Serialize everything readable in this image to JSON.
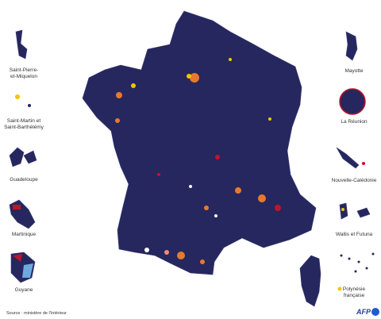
{
  "territories": [
    {
      "lines": [
        "Saint-Pierre-",
        "et-Miquelon"
      ]
    },
    {
      "lines": [
        "Saint-Martin et",
        "Saint-Barthélémy"
      ]
    },
    {
      "lines": [
        "Guadeloupe"
      ]
    },
    {
      "lines": [
        "Martinique"
      ]
    },
    {
      "lines": [
        "Guyane"
      ]
    },
    {
      "lines": [
        "Mayotte"
      ]
    },
    {
      "lines": [
        "La Réunion"
      ]
    },
    {
      "lines": [
        "Nouvelle-Calédonie"
      ]
    },
    {
      "lines": [
        "Wallis et Futuna"
      ]
    },
    {
      "lines": [
        "Polynésie",
        "française"
      ]
    }
  ],
  "source": "Source : ministère de l'Intérieur",
  "logo": "AFP"
}
